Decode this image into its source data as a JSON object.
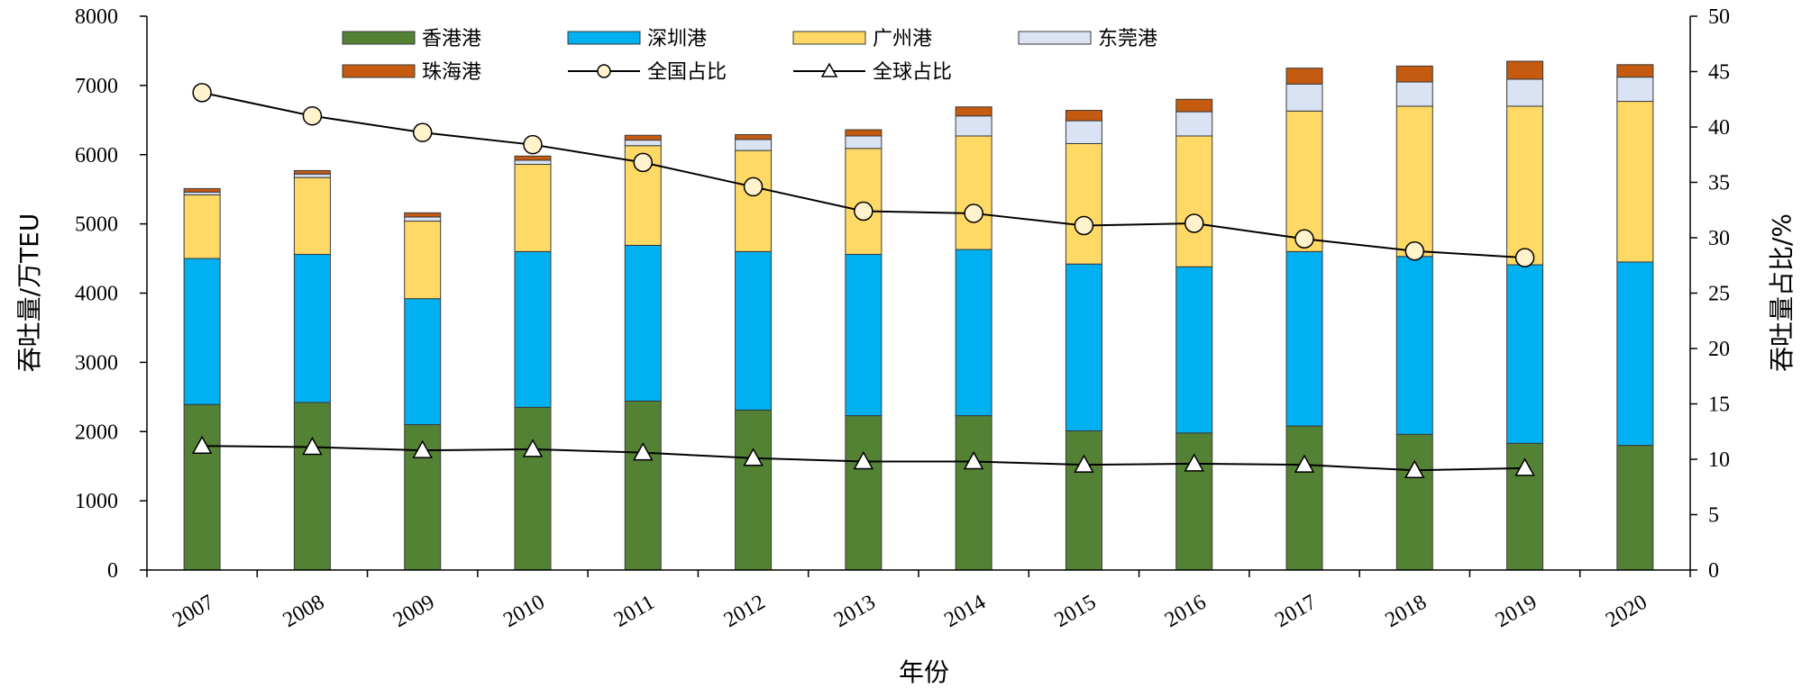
{
  "chart_data": {
    "type": "bar",
    "stacked": true,
    "categories": [
      "2007",
      "2008",
      "2009",
      "2010",
      "2011",
      "2012",
      "2013",
      "2014",
      "2015",
      "2016",
      "2017",
      "2018",
      "2019",
      "2020"
    ],
    "series": [
      {
        "name": "香港港",
        "color": "#548235",
        "values": [
          2390,
          2420,
          2100,
          2350,
          2440,
          2310,
          2230,
          2230,
          2010,
          1980,
          2080,
          1960,
          1830,
          1800
        ]
      },
      {
        "name": "深圳港",
        "color": "#00b0f0",
        "values": [
          2110,
          2140,
          1820,
          2250,
          2250,
          2290,
          2330,
          2400,
          2410,
          2400,
          2520,
          2570,
          2580,
          2650
        ]
      },
      {
        "name": "广州港",
        "color": "#ffd966",
        "values": [
          920,
          1110,
          1120,
          1260,
          1440,
          1460,
          1530,
          1640,
          1740,
          1890,
          2030,
          2170,
          2290,
          2320
        ]
      },
      {
        "name": "东莞港",
        "color": "#dae3f3",
        "values": [
          40,
          50,
          60,
          60,
          80,
          160,
          180,
          290,
          330,
          350,
          390,
          350,
          390,
          350
        ]
      },
      {
        "name": "珠海港",
        "color": "#c55a11",
        "values": [
          50,
          50,
          60,
          60,
          70,
          70,
          90,
          130,
          150,
          180,
          230,
          230,
          260,
          180
        ]
      }
    ],
    "lines": [
      {
        "name": "全国占比",
        "marker": "circle",
        "values": [
          43.1,
          41.0,
          39.5,
          38.4,
          36.8,
          34.6,
          32.4,
          32.2,
          31.1,
          31.3,
          29.9,
          28.8,
          28.2,
          null
        ]
      },
      {
        "name": "全球占比",
        "marker": "triangle",
        "values": [
          11.2,
          11.1,
          10.8,
          10.9,
          10.6,
          10.1,
          9.8,
          9.8,
          9.5,
          9.6,
          9.5,
          9.0,
          9.2,
          null
        ]
      }
    ],
    "xlabel": "年份",
    "ylabel": "吞吐量/万TEU",
    "y2label": "吞吐量占比/%",
    "ylim": [
      0,
      8000
    ],
    "yticks": [
      0,
      1000,
      2000,
      3000,
      4000,
      5000,
      6000,
      7000,
      8000
    ],
    "y2lim": [
      0,
      50
    ],
    "y2ticks": [
      0,
      5,
      10,
      15,
      20,
      25,
      30,
      35,
      40,
      45,
      50
    ],
    "legend_position": "top",
    "grid": false
  }
}
